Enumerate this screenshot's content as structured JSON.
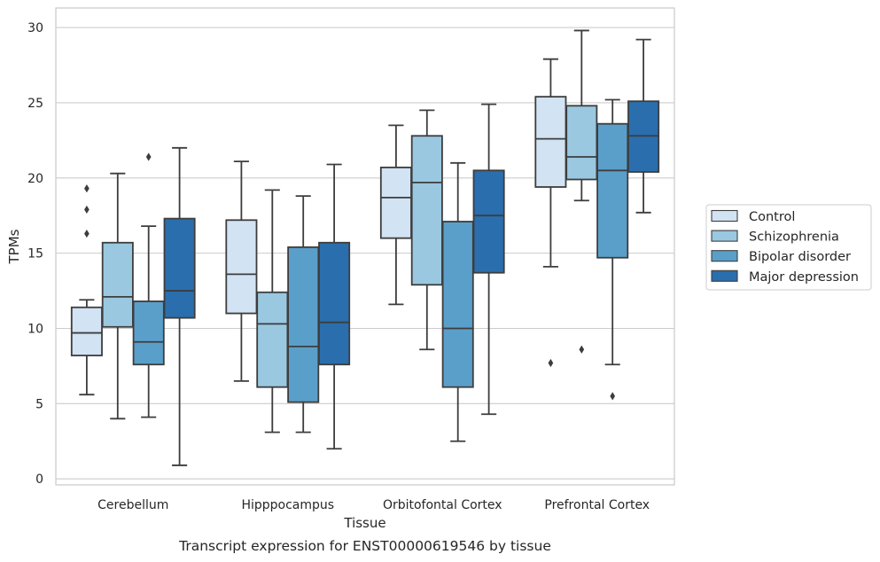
{
  "chart_data": {
    "type": "box",
    "title": "",
    "caption": "Transcript expression for ENST00000619546 by tissue",
    "xlabel": "Tissue",
    "ylabel": "TPMs",
    "ylim": [
      -0.4,
      31.3
    ],
    "yticks": [
      0,
      5,
      10,
      15,
      20,
      25,
      30
    ],
    "grid": "horizontal",
    "legend_position": "right",
    "categories": [
      "Cerebellum",
      "Hipppocampus",
      "Orbitofontal Cortex",
      "Prefrontal Cortex"
    ],
    "series": [
      {
        "name": "Control",
        "color": "#d2e3f3",
        "boxes": [
          {
            "whisker_low": 5.6,
            "q1": 8.2,
            "median": 9.7,
            "q3": 11.4,
            "whisker_high": 11.9,
            "outliers": [
              16.3,
              17.9,
              19.3
            ]
          },
          {
            "whisker_low": 6.5,
            "q1": 11.0,
            "median": 13.6,
            "q3": 17.2,
            "whisker_high": 21.1,
            "outliers": []
          },
          {
            "whisker_low": 11.6,
            "q1": 16.0,
            "median": 18.7,
            "q3": 20.7,
            "whisker_high": 23.5,
            "outliers": []
          },
          {
            "whisker_low": 14.1,
            "q1": 19.4,
            "median": 22.6,
            "q3": 25.4,
            "whisker_high": 27.9,
            "outliers": [
              7.7
            ]
          }
        ]
      },
      {
        "name": "Schizophrenia",
        "color": "#9ac8e0",
        "boxes": [
          {
            "whisker_low": 4.0,
            "q1": 10.1,
            "median": 12.1,
            "q3": 15.7,
            "whisker_high": 20.3,
            "outliers": []
          },
          {
            "whisker_low": 3.1,
            "q1": 6.1,
            "median": 10.3,
            "q3": 12.4,
            "whisker_high": 19.2,
            "outliers": []
          },
          {
            "whisker_low": 8.6,
            "q1": 12.9,
            "median": 19.7,
            "q3": 22.8,
            "whisker_high": 24.5,
            "outliers": []
          },
          {
            "whisker_low": 18.5,
            "q1": 19.9,
            "median": 21.4,
            "q3": 24.8,
            "whisker_high": 29.8,
            "outliers": [
              8.6
            ]
          }
        ]
      },
      {
        "name": "Bipolar disorder",
        "color": "#5a9fc9",
        "boxes": [
          {
            "whisker_low": 4.1,
            "q1": 7.6,
            "median": 9.1,
            "q3": 11.8,
            "whisker_high": 16.8,
            "outliers": [
              21.4
            ]
          },
          {
            "whisker_low": 3.1,
            "q1": 5.1,
            "median": 8.8,
            "q3": 15.4,
            "whisker_high": 18.8,
            "outliers": []
          },
          {
            "whisker_low": 2.5,
            "q1": 6.1,
            "median": 10.0,
            "q3": 17.1,
            "whisker_high": 21.0,
            "outliers": []
          },
          {
            "whisker_low": 7.6,
            "q1": 14.7,
            "median": 20.5,
            "q3": 23.6,
            "whisker_high": 25.2,
            "outliers": [
              5.5
            ]
          }
        ]
      },
      {
        "name": "Major depression",
        "color": "#2a6ead",
        "boxes": [
          {
            "whisker_low": 0.9,
            "q1": 10.7,
            "median": 12.5,
            "q3": 17.3,
            "whisker_high": 22.0,
            "outliers": []
          },
          {
            "whisker_low": 2.0,
            "q1": 7.6,
            "median": 10.4,
            "q3": 15.7,
            "whisker_high": 20.9,
            "outliers": []
          },
          {
            "whisker_low": 4.3,
            "q1": 13.7,
            "median": 17.5,
            "q3": 20.5,
            "whisker_high": 24.9,
            "outliers": []
          },
          {
            "whisker_low": 17.7,
            "q1": 20.4,
            "median": 22.8,
            "q3": 25.1,
            "whisker_high": 29.2,
            "outliers": []
          }
        ]
      }
    ]
  }
}
